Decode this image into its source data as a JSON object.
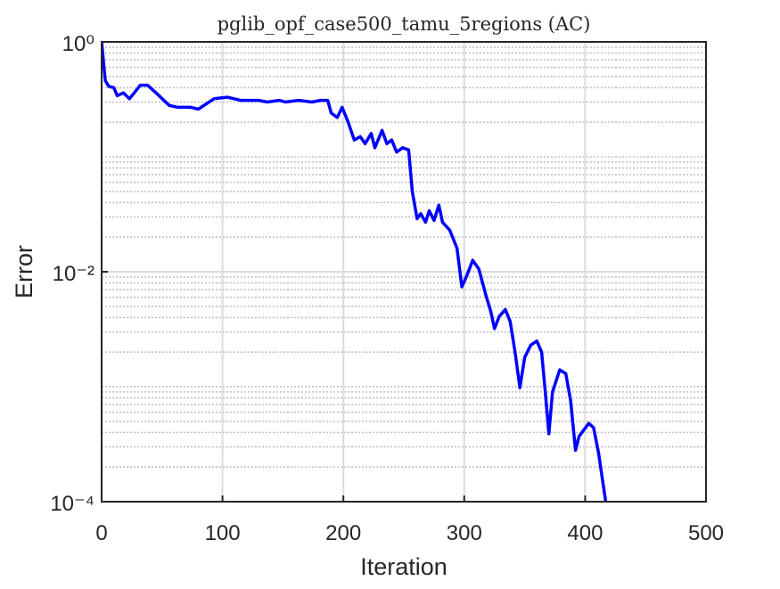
{
  "chart_data": {
    "type": "line",
    "title": "pglib_opf_case500_tamu_5regions (AC)",
    "xlabel": "Iteration",
    "ylabel": "Error",
    "x": [
      0,
      3,
      6,
      10,
      13,
      18,
      23,
      27,
      32,
      38,
      45,
      56,
      63,
      74,
      80,
      93,
      104,
      115,
      130,
      137,
      147,
      152,
      163,
      174,
      181,
      187,
      190,
      195,
      199,
      204,
      209,
      214,
      218,
      223,
      226,
      232,
      236,
      240,
      244,
      249,
      254,
      257,
      261,
      264,
      268,
      271,
      275,
      279,
      282,
      288,
      294,
      298,
      302,
      307,
      312,
      318,
      322,
      325,
      329,
      334,
      338,
      342,
      346,
      350,
      355,
      360,
      364,
      367,
      370,
      373,
      379,
      384,
      388,
      392,
      395,
      403,
      407,
      411,
      417
    ],
    "series": [
      {
        "name": "Error",
        "color": "#0000ff",
        "values": [
          1.0,
          0.46,
          0.41,
          0.4,
          0.34,
          0.36,
          0.32,
          0.36,
          0.42,
          0.42,
          0.36,
          0.28,
          0.27,
          0.27,
          0.26,
          0.32,
          0.33,
          0.31,
          0.31,
          0.3,
          0.31,
          0.3,
          0.31,
          0.3,
          0.31,
          0.31,
          0.24,
          0.22,
          0.27,
          0.2,
          0.14,
          0.15,
          0.13,
          0.16,
          0.12,
          0.17,
          0.13,
          0.14,
          0.11,
          0.12,
          0.115,
          0.05,
          0.029,
          0.032,
          0.027,
          0.034,
          0.028,
          0.038,
          0.027,
          0.023,
          0.016,
          0.0074,
          0.0092,
          0.0126,
          0.0106,
          0.0062,
          0.0045,
          0.0032,
          0.0041,
          0.0047,
          0.0037,
          0.002,
          0.00098,
          0.0018,
          0.0023,
          0.0025,
          0.002,
          0.0009,
          0.00039,
          0.0009,
          0.0014,
          0.0013,
          0.00076,
          0.00028,
          0.00037,
          0.00048,
          0.00044,
          0.00027,
          0.0001
        ]
      }
    ],
    "xlim": [
      0,
      500
    ],
    "xticks": [
      0,
      100,
      200,
      300,
      400,
      500
    ],
    "ylim": [
      0.0001,
      1
    ],
    "ylog": true,
    "yticks": [
      {
        "value": 0.0001,
        "label": "10⁻⁴"
      },
      {
        "value": 0.01,
        "label": "10⁻²"
      },
      {
        "value": 1,
        "label": "10⁰"
      }
    ],
    "yminorticks": [
      0.0002,
      0.0003,
      0.0004,
      0.0005,
      0.0006,
      0.0007,
      0.0008,
      0.0009,
      0.001,
      0.002,
      0.003,
      0.004,
      0.005,
      0.006,
      0.007,
      0.008,
      0.009,
      0.02,
      0.03,
      0.04,
      0.05,
      0.06,
      0.07,
      0.08,
      0.09,
      0.1,
      0.2,
      0.3,
      0.4,
      0.5,
      0.6,
      0.7,
      0.8,
      0.9
    ],
    "grid": true
  }
}
